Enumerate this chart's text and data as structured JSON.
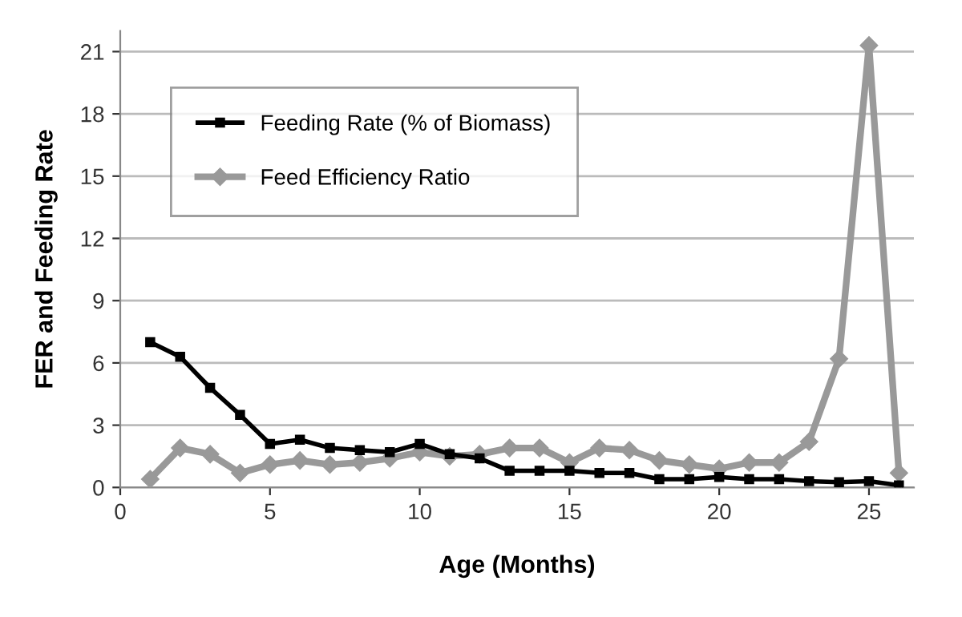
{
  "chart_data": {
    "type": "line",
    "xlabel": "Age (Months)",
    "ylabel": "FER and Feeding Rate",
    "x": [
      1,
      2,
      3,
      4,
      5,
      6,
      7,
      8,
      9,
      10,
      11,
      12,
      13,
      14,
      15,
      16,
      17,
      18,
      19,
      20,
      21,
      22,
      23,
      24,
      25,
      26
    ],
    "series": [
      {
        "name": "Feeding Rate (% of Biomass)",
        "color": "#000000",
        "marker": "square",
        "values": [
          7.0,
          6.3,
          4.8,
          3.5,
          2.1,
          2.3,
          1.9,
          1.8,
          1.7,
          2.1,
          1.6,
          1.4,
          0.8,
          0.8,
          0.8,
          0.7,
          0.7,
          0.4,
          0.4,
          0.5,
          0.4,
          0.4,
          0.3,
          0.25,
          0.3,
          0.1
        ]
      },
      {
        "name": "Feed Efficiency Ratio",
        "color": "#999999",
        "marker": "diamond",
        "values": [
          0.4,
          1.9,
          1.6,
          0.7,
          1.1,
          1.3,
          1.1,
          1.2,
          1.4,
          1.7,
          1.5,
          1.6,
          1.9,
          1.9,
          1.2,
          1.9,
          1.8,
          1.3,
          1.1,
          0.9,
          1.2,
          1.2,
          2.2,
          6.2,
          21.3,
          0.7
        ]
      }
    ],
    "xlim": [
      0,
      26.5
    ],
    "xticks": [
      0,
      5,
      10,
      15,
      20,
      25
    ],
    "ylim": [
      0,
      22
    ],
    "yticks": [
      0,
      3,
      6,
      9,
      12,
      15,
      18,
      21
    ],
    "grid": "y",
    "legend": "top left",
    "line_style": "solid"
  }
}
